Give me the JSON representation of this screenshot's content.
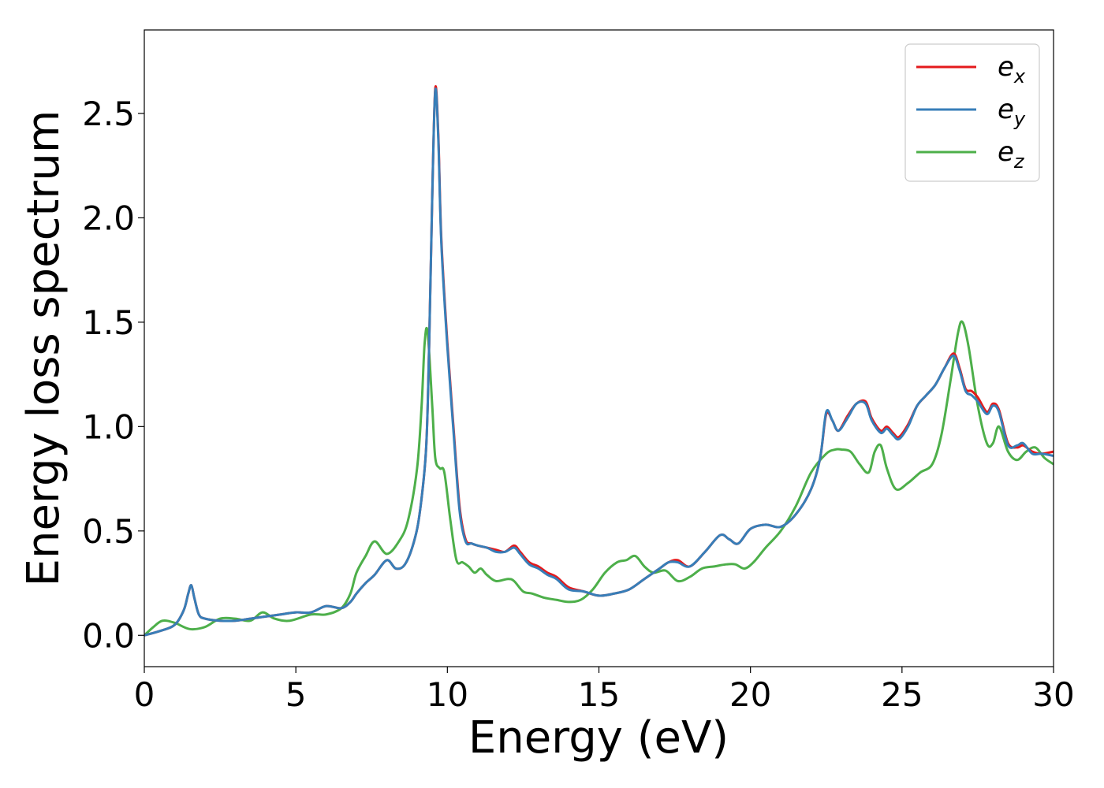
{
  "chart_data": {
    "type": "line",
    "title": "",
    "xlabel": "Energy (eV)",
    "ylabel": "Energy loss spectrum",
    "xlim": [
      0,
      30
    ],
    "ylim": [
      -0.15,
      2.9
    ],
    "xticks": [
      "0",
      "5",
      "10",
      "15",
      "20",
      "25",
      "30"
    ],
    "xtick_values": [
      0,
      5,
      10,
      15,
      20,
      25,
      30
    ],
    "yticks": [
      "0.0",
      "0.5",
      "1.0",
      "1.5",
      "2.0",
      "2.5"
    ],
    "ytick_values": [
      0.0,
      0.5,
      1.0,
      1.5,
      2.0,
      2.5
    ],
    "grid": false,
    "legend_position": "top-right",
    "series": [
      {
        "name": "e_x",
        "legend_base": "e",
        "legend_sub": "x",
        "color": "#e41a1c",
        "x": [
          0,
          0.5,
          1.0,
          1.3,
          1.45,
          1.55,
          1.65,
          1.8,
          2.0,
          2.5,
          3.0,
          3.5,
          4.0,
          4.5,
          5.0,
          5.5,
          6.0,
          6.5,
          6.8,
          7.0,
          7.3,
          7.6,
          8.0,
          8.3,
          8.6,
          8.9,
          9.1,
          9.3,
          9.4,
          9.5,
          9.6,
          9.7,
          9.8,
          10.0,
          10.2,
          10.4,
          10.6,
          10.8,
          11.0,
          11.3,
          11.6,
          11.9,
          12.2,
          12.4,
          12.7,
          13.0,
          13.3,
          13.6,
          14.0,
          14.5,
          15.0,
          15.5,
          16.0,
          16.5,
          17.0,
          17.3,
          17.6,
          18.0,
          18.5,
          19.0,
          19.3,
          19.6,
          20.0,
          20.5,
          21.0,
          21.5,
          22.0,
          22.3,
          22.5,
          22.7,
          22.9,
          23.2,
          23.5,
          23.8,
          24.0,
          24.3,
          24.5,
          24.7,
          24.9,
          25.2,
          25.5,
          25.8,
          26.1,
          26.4,
          26.7,
          26.9,
          27.1,
          27.3,
          27.5,
          27.8,
          28.0,
          28.2,
          28.5,
          28.8,
          29.0,
          29.3,
          29.6,
          30.0
        ],
        "values": [
          0.0,
          0.02,
          0.05,
          0.12,
          0.2,
          0.24,
          0.18,
          0.1,
          0.08,
          0.07,
          0.07,
          0.08,
          0.09,
          0.1,
          0.11,
          0.11,
          0.14,
          0.13,
          0.16,
          0.2,
          0.25,
          0.29,
          0.36,
          0.32,
          0.34,
          0.45,
          0.6,
          0.9,
          1.4,
          2.1,
          2.62,
          2.4,
          1.9,
          1.4,
          1.0,
          0.62,
          0.46,
          0.44,
          0.43,
          0.42,
          0.41,
          0.4,
          0.43,
          0.4,
          0.35,
          0.33,
          0.3,
          0.28,
          0.23,
          0.21,
          0.19,
          0.2,
          0.22,
          0.27,
          0.32,
          0.35,
          0.36,
          0.33,
          0.4,
          0.48,
          0.46,
          0.44,
          0.51,
          0.53,
          0.52,
          0.58,
          0.7,
          0.85,
          1.06,
          1.03,
          0.98,
          1.05,
          1.11,
          1.12,
          1.04,
          0.98,
          1.0,
          0.97,
          0.95,
          1.01,
          1.1,
          1.15,
          1.2,
          1.28,
          1.35,
          1.28,
          1.18,
          1.17,
          1.14,
          1.07,
          1.11,
          1.08,
          0.92,
          0.9,
          0.91,
          0.88,
          0.87,
          0.88
        ]
      },
      {
        "name": "e_y",
        "legend_base": "e",
        "legend_sub": "y",
        "color": "#377eb8",
        "x": [
          0,
          0.5,
          1.0,
          1.3,
          1.45,
          1.55,
          1.65,
          1.8,
          2.0,
          2.5,
          3.0,
          3.5,
          4.0,
          4.5,
          5.0,
          5.5,
          6.0,
          6.5,
          6.8,
          7.0,
          7.3,
          7.6,
          8.0,
          8.3,
          8.6,
          8.9,
          9.1,
          9.3,
          9.4,
          9.5,
          9.6,
          9.7,
          9.8,
          10.0,
          10.2,
          10.4,
          10.6,
          10.8,
          11.0,
          11.3,
          11.6,
          11.9,
          12.2,
          12.4,
          12.7,
          13.0,
          13.3,
          13.6,
          14.0,
          14.5,
          15.0,
          15.5,
          16.0,
          16.5,
          17.0,
          17.3,
          17.6,
          18.0,
          18.5,
          19.0,
          19.3,
          19.6,
          20.0,
          20.5,
          21.0,
          21.5,
          22.0,
          22.3,
          22.5,
          22.7,
          22.9,
          23.2,
          23.5,
          23.8,
          24.0,
          24.3,
          24.5,
          24.7,
          24.9,
          25.2,
          25.5,
          25.8,
          26.1,
          26.4,
          26.7,
          26.9,
          27.1,
          27.3,
          27.5,
          27.8,
          28.0,
          28.2,
          28.5,
          28.8,
          29.0,
          29.3,
          29.6,
          30.0
        ],
        "values": [
          0.0,
          0.02,
          0.05,
          0.12,
          0.2,
          0.24,
          0.18,
          0.1,
          0.08,
          0.07,
          0.07,
          0.08,
          0.09,
          0.1,
          0.11,
          0.11,
          0.14,
          0.13,
          0.16,
          0.2,
          0.25,
          0.29,
          0.36,
          0.32,
          0.34,
          0.45,
          0.6,
          0.9,
          1.4,
          2.1,
          2.61,
          2.38,
          1.88,
          1.38,
          0.98,
          0.6,
          0.45,
          0.44,
          0.43,
          0.42,
          0.4,
          0.4,
          0.42,
          0.39,
          0.34,
          0.32,
          0.29,
          0.27,
          0.22,
          0.21,
          0.19,
          0.2,
          0.22,
          0.27,
          0.32,
          0.35,
          0.35,
          0.33,
          0.4,
          0.48,
          0.46,
          0.44,
          0.51,
          0.53,
          0.52,
          0.58,
          0.7,
          0.85,
          1.07,
          1.03,
          0.98,
          1.04,
          1.11,
          1.11,
          1.03,
          0.97,
          0.99,
          0.96,
          0.94,
          1.0,
          1.1,
          1.15,
          1.2,
          1.28,
          1.34,
          1.27,
          1.17,
          1.15,
          1.12,
          1.06,
          1.1,
          1.07,
          0.91,
          0.91,
          0.92,
          0.87,
          0.87,
          0.86
        ]
      },
      {
        "name": "e_z",
        "legend_base": "e",
        "legend_sub": "z",
        "color": "#4daf4a",
        "x": [
          0,
          0.3,
          0.6,
          1.0,
          1.5,
          2.0,
          2.5,
          3.0,
          3.5,
          3.9,
          4.3,
          4.8,
          5.5,
          6.0,
          6.5,
          6.8,
          7.0,
          7.3,
          7.6,
          8.0,
          8.4,
          8.7,
          9.0,
          9.15,
          9.25,
          9.35,
          9.5,
          9.6,
          9.75,
          9.9,
          10.1,
          10.3,
          10.5,
          10.7,
          10.9,
          11.1,
          11.3,
          11.6,
          12.0,
          12.2,
          12.5,
          12.8,
          13.2,
          13.6,
          14.0,
          14.4,
          14.8,
          15.2,
          15.6,
          15.9,
          16.2,
          16.5,
          16.8,
          17.2,
          17.6,
          18.0,
          18.4,
          18.8,
          19.2,
          19.5,
          19.8,
          20.1,
          20.5,
          21.0,
          21.5,
          22.0,
          22.5,
          22.8,
          23.0,
          23.3,
          23.6,
          23.9,
          24.1,
          24.3,
          24.5,
          24.8,
          25.2,
          25.6,
          26.0,
          26.3,
          26.6,
          26.85,
          27.0,
          27.2,
          27.5,
          27.8,
          28.0,
          28.2,
          28.5,
          28.8,
          29.1,
          29.4,
          29.7,
          30.0
        ],
        "values": [
          0.0,
          0.04,
          0.07,
          0.06,
          0.03,
          0.04,
          0.08,
          0.08,
          0.07,
          0.11,
          0.08,
          0.07,
          0.1,
          0.1,
          0.13,
          0.2,
          0.3,
          0.38,
          0.45,
          0.39,
          0.45,
          0.55,
          0.8,
          1.1,
          1.4,
          1.45,
          1.1,
          0.85,
          0.8,
          0.78,
          0.55,
          0.36,
          0.35,
          0.33,
          0.3,
          0.32,
          0.29,
          0.26,
          0.27,
          0.26,
          0.21,
          0.2,
          0.18,
          0.17,
          0.16,
          0.17,
          0.22,
          0.3,
          0.35,
          0.36,
          0.38,
          0.33,
          0.3,
          0.31,
          0.26,
          0.28,
          0.32,
          0.33,
          0.34,
          0.34,
          0.32,
          0.35,
          0.42,
          0.5,
          0.62,
          0.78,
          0.87,
          0.89,
          0.89,
          0.88,
          0.82,
          0.78,
          0.88,
          0.91,
          0.8,
          0.7,
          0.73,
          0.78,
          0.82,
          0.96,
          1.22,
          1.45,
          1.5,
          1.38,
          1.1,
          0.92,
          0.92,
          1.0,
          0.88,
          0.84,
          0.88,
          0.9,
          0.85,
          0.82
        ]
      }
    ]
  }
}
